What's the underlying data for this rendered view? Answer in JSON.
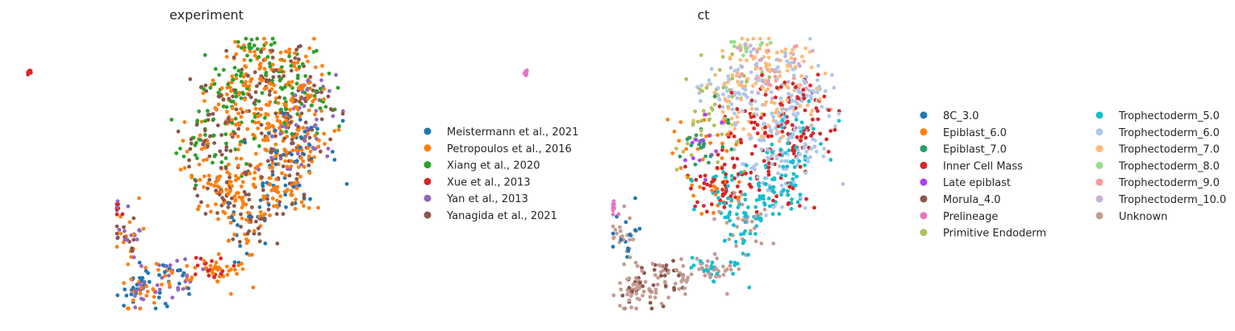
{
  "chart_data": [
    {
      "type": "scatter",
      "title": "experiment",
      "xlabel": "",
      "ylabel": "",
      "grid": false,
      "axes_visible": false,
      "legend_position": "right",
      "series": [
        {
          "name": "Meistermann et al., 2021",
          "color": "#1f77b4"
        },
        {
          "name": "Petropoulos et al., 2016",
          "color": "#ff7f0e"
        },
        {
          "name": "Xiang et al., 2020",
          "color": "#2ca02c"
        },
        {
          "name": "Xue et al., 2013",
          "color": "#d62728"
        },
        {
          "name": "Yan et al., 2013",
          "color": "#9467bd"
        },
        {
          "name": "Yanagida et al., 2021",
          "color": "#8c564b"
        }
      ]
    },
    {
      "type": "scatter",
      "title": "ct",
      "xlabel": "",
      "ylabel": "",
      "grid": false,
      "axes_visible": false,
      "legend_position": "right",
      "series": [
        {
          "name": "8C_3.0",
          "color": "#1f77b4"
        },
        {
          "name": "Epiblast_6.0",
          "color": "#ff7f0e"
        },
        {
          "name": "Epiblast_7.0",
          "color": "#279e68"
        },
        {
          "name": "Inner Cell Mass",
          "color": "#d62728"
        },
        {
          "name": "Late epiblast",
          "color": "#aa40fc"
        },
        {
          "name": "Morula_4.0",
          "color": "#8c564b"
        },
        {
          "name": "Prelineage",
          "color": "#e377c2"
        },
        {
          "name": "Primitive Endoderm",
          "color": "#b5bd61"
        },
        {
          "name": "Trophectoderm_5.0",
          "color": "#17becf"
        },
        {
          "name": "Trophectoderm_6.0",
          "color": "#aec7e8"
        },
        {
          "name": "Trophectoderm_7.0",
          "color": "#ffbb78"
        },
        {
          "name": "Trophectoderm_8.0",
          "color": "#98df8a"
        },
        {
          "name": "Trophectoderm_9.0",
          "color": "#ff9896"
        },
        {
          "name": "Trophectoderm_10.0",
          "color": "#c5b0d5"
        },
        {
          "name": "Unknown",
          "color": "#c49c94"
        }
      ]
    }
  ]
}
